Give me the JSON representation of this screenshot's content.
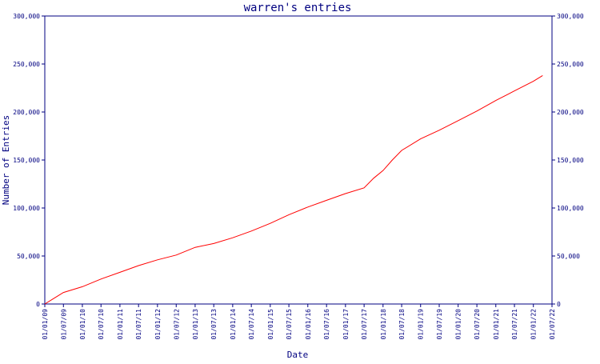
{
  "chart_data": {
    "type": "line",
    "title": "warren's entries",
    "xlabel": "Date",
    "ylabel": "Number of Entries",
    "ylim": [
      0,
      300000
    ],
    "xlim": [
      "2009-01-01",
      "2022-07-01"
    ],
    "grid": false,
    "y_ticks": [
      {
        "value": 0,
        "label": "0"
      },
      {
        "value": 50000,
        "label": "50,000"
      },
      {
        "value": 100000,
        "label": "100,000"
      },
      {
        "value": 150000,
        "label": "150,000"
      },
      {
        "value": 200000,
        "label": "200,000"
      },
      {
        "value": 250000,
        "label": "250,000"
      },
      {
        "value": 300000,
        "label": "300,000"
      }
    ],
    "x_ticks": [
      {
        "value": "2009-01-01",
        "label": "01/01/09"
      },
      {
        "value": "2009-07-01",
        "label": "01/07/09"
      },
      {
        "value": "2010-01-01",
        "label": "01/01/10"
      },
      {
        "value": "2010-07-01",
        "label": "01/07/10"
      },
      {
        "value": "2011-01-01",
        "label": "01/01/11"
      },
      {
        "value": "2011-07-01",
        "label": "01/07/11"
      },
      {
        "value": "2012-01-01",
        "label": "01/01/12"
      },
      {
        "value": "2012-07-01",
        "label": "01/07/12"
      },
      {
        "value": "2013-01-01",
        "label": "01/01/13"
      },
      {
        "value": "2013-07-01",
        "label": "01/07/13"
      },
      {
        "value": "2014-01-01",
        "label": "01/01/14"
      },
      {
        "value": "2014-07-01",
        "label": "01/07/14"
      },
      {
        "value": "2015-01-01",
        "label": "01/01/15"
      },
      {
        "value": "2015-07-01",
        "label": "01/07/15"
      },
      {
        "value": "2016-01-01",
        "label": "01/01/16"
      },
      {
        "value": "2016-07-01",
        "label": "01/07/16"
      },
      {
        "value": "2017-01-01",
        "label": "01/01/17"
      },
      {
        "value": "2017-07-01",
        "label": "01/07/17"
      },
      {
        "value": "2018-01-01",
        "label": "01/01/18"
      },
      {
        "value": "2018-07-01",
        "label": "01/07/18"
      },
      {
        "value": "2019-01-01",
        "label": "01/01/19"
      },
      {
        "value": "2019-07-01",
        "label": "01/07/19"
      },
      {
        "value": "2020-01-01",
        "label": "01/01/20"
      },
      {
        "value": "2020-07-01",
        "label": "01/07/20"
      },
      {
        "value": "2021-01-01",
        "label": "01/01/21"
      },
      {
        "value": "2021-07-01",
        "label": "01/07/21"
      },
      {
        "value": "2022-01-01",
        "label": "01/01/22"
      },
      {
        "value": "2022-07-01",
        "label": "01/07/22"
      }
    ],
    "series": [
      {
        "color": "#ff0000",
        "x": [
          "2009-01-01",
          "2009-04-01",
          "2009-07-01",
          "2010-01-01",
          "2010-07-01",
          "2011-01-01",
          "2011-07-01",
          "2012-01-01",
          "2012-07-01",
          "2013-01-01",
          "2013-07-01",
          "2014-01-01",
          "2014-07-01",
          "2015-01-01",
          "2015-07-01",
          "2016-01-01",
          "2016-07-01",
          "2017-01-01",
          "2017-07-01",
          "2017-10-01",
          "2018-01-01",
          "2018-04-01",
          "2018-07-01",
          "2019-01-01",
          "2019-07-01",
          "2020-01-01",
          "2020-07-01",
          "2021-01-01",
          "2021-07-01",
          "2022-01-01",
          "2022-04-01"
        ],
        "y": [
          0,
          6000,
          12000,
          18000,
          26000,
          33000,
          40000,
          46000,
          51000,
          59000,
          63000,
          69000,
          76000,
          84000,
          93000,
          101000,
          108000,
          115000,
          121000,
          131000,
          139000,
          150000,
          160000,
          172000,
          181000,
          191000,
          201000,
          212000,
          222000,
          232000,
          238000
        ]
      }
    ]
  }
}
